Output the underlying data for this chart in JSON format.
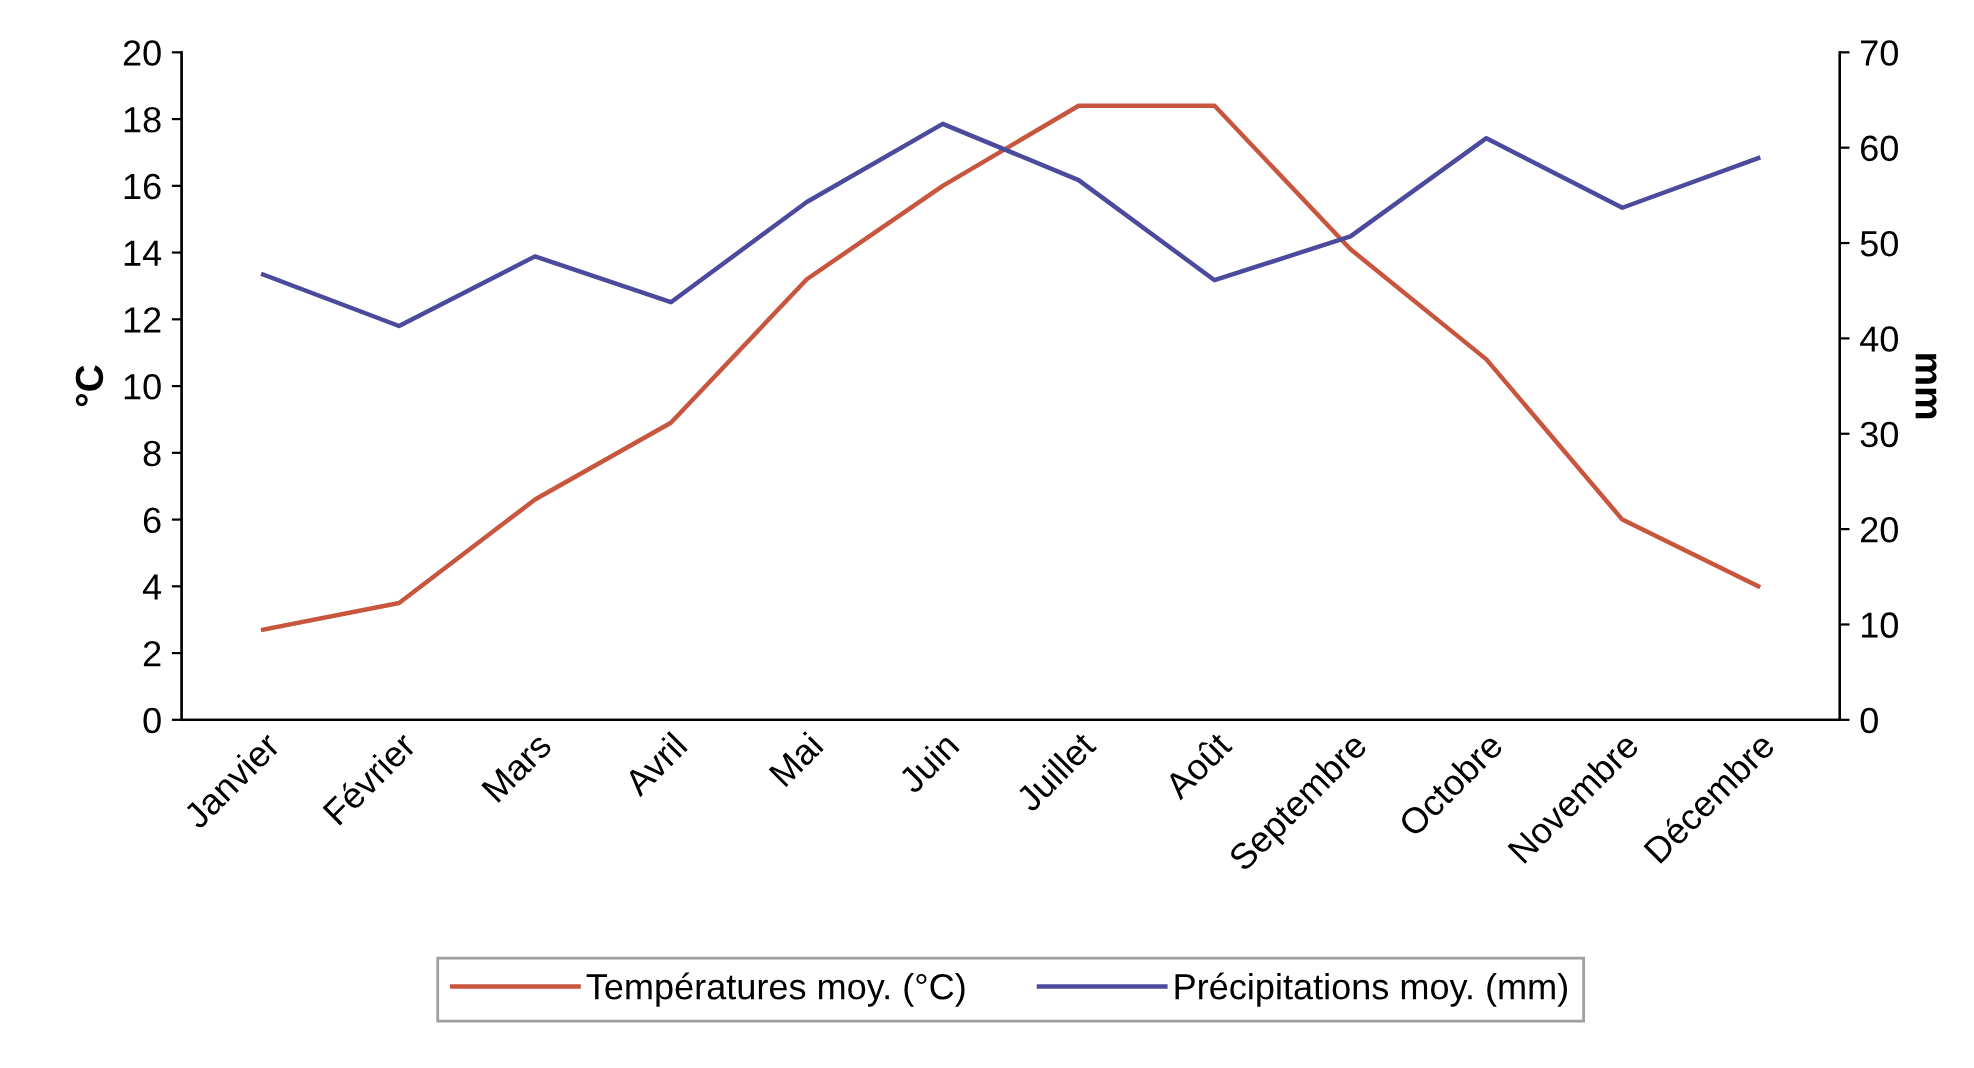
{
  "chart_data": {
    "type": "line",
    "categories": [
      "Janvier",
      "Février",
      "Mars",
      "Avril",
      "Mai",
      "Juin",
      "Juillet",
      "Août",
      "Septembre",
      "Octobre",
      "Novembre",
      "Décembre"
    ],
    "series": [
      {
        "name": "Températures moy. (°C)",
        "color": "#c8553d",
        "values": [
          2.7,
          3.5,
          6.6,
          8.9,
          13.2,
          16.0,
          18.4,
          18.4,
          14.1,
          10.8,
          6.0,
          4.0
        ]
      },
      {
        "name": "Précipitations moy. (mm)",
        "color": "#4b4a9c",
        "axis": "y2",
        "values": [
          46.7,
          41.3,
          48.6,
          43.8,
          54.3,
          62.5,
          56.6,
          46.1,
          50.7,
          61.0,
          53.7,
          58.9
        ]
      }
    ],
    "ylabel": "°C",
    "y2label": "mm",
    "ylim": [
      0,
      20
    ],
    "yticks": [
      0,
      2,
      4,
      6,
      8,
      10,
      12,
      14,
      16,
      18,
      20
    ],
    "y2lim": [
      0,
      70
    ],
    "y2ticks": [
      0,
      10,
      20,
      30,
      40,
      50,
      60,
      70
    ],
    "grid": false,
    "legend": "bottom",
    "marker": "none",
    "line_style": "solid"
  }
}
